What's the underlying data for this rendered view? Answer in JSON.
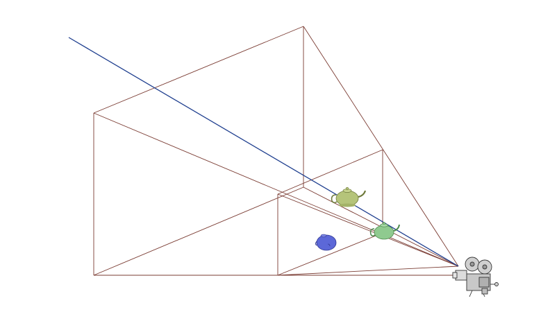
{
  "scene": {
    "description_visible_text": "",
    "colors": {
      "frustum_lines": "#7a3b32",
      "ray": "#1f3f8f",
      "teapot_olive": "#b5c47a",
      "teapot_green": "#8fca8f",
      "teapot_blue": "#5c68d8",
      "camera_body": "#c8c8c8",
      "camera_outline": "#333333"
    },
    "objects": [
      {
        "name": "teapot-olive",
        "color_key": "teapot_olive"
      },
      {
        "name": "teapot-green",
        "color_key": "teapot_green"
      },
      {
        "name": "teapot-blue",
        "color_key": "teapot_blue"
      },
      {
        "name": "movie-camera",
        "icon": "movie-camera-icon"
      }
    ]
  }
}
